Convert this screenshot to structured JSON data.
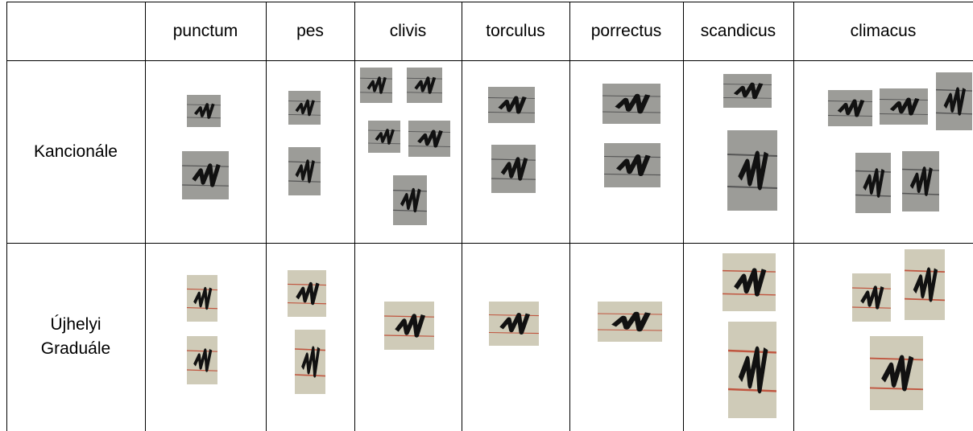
{
  "table": {
    "header": [
      "punctum",
      "pes",
      "clivis",
      "torculus",
      "porrectus",
      "scandicus",
      "climacus"
    ],
    "rows": [
      {
        "label": "Kancionále"
      },
      {
        "label": "Újhelyi Graduále"
      }
    ]
  }
}
